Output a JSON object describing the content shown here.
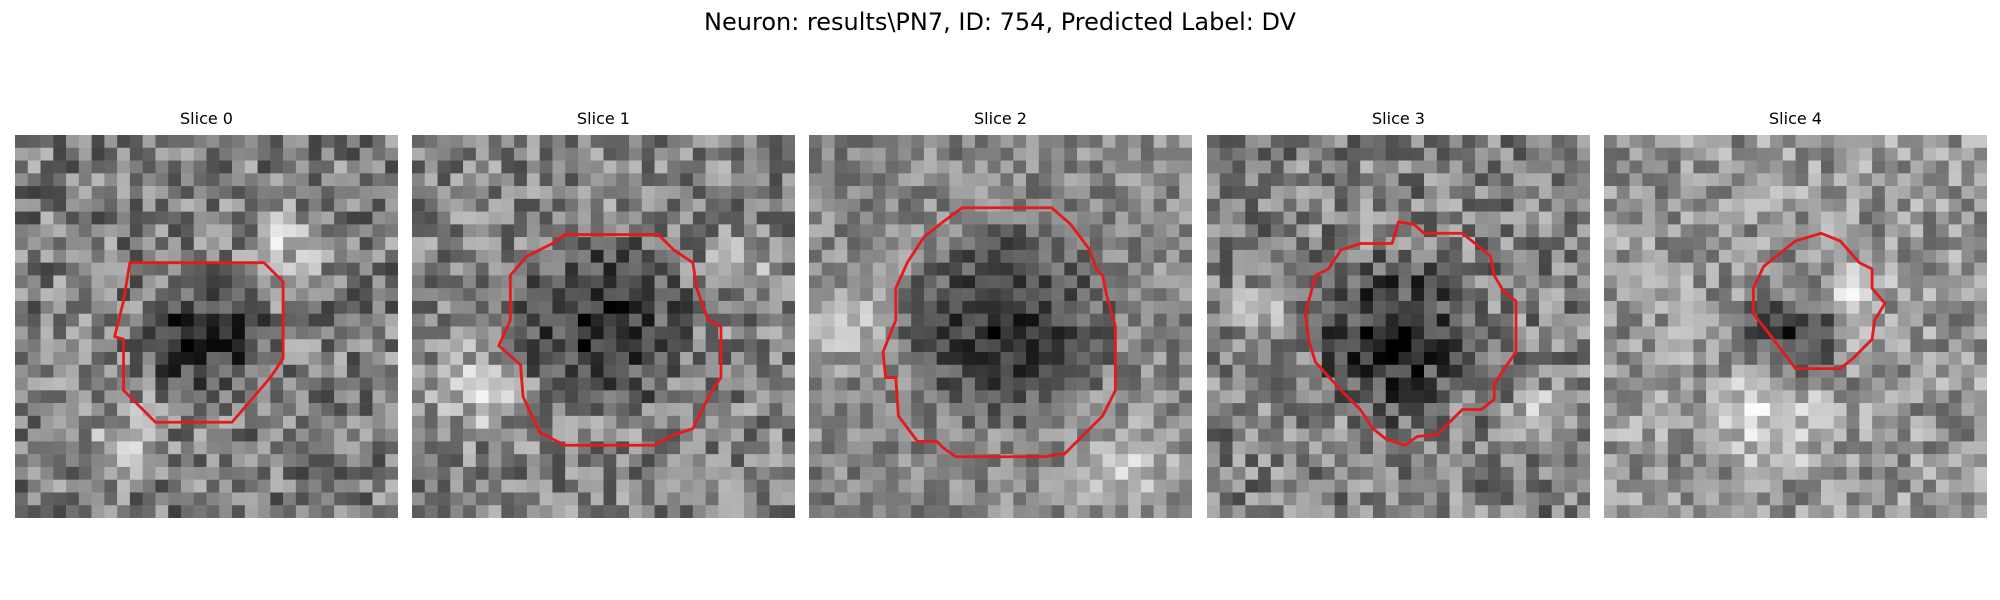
{
  "figure": {
    "title": "Neuron: results\\PN7, ID: 754, Predicted Label: DV"
  },
  "panels": [
    {
      "title": "Slice 0"
    },
    {
      "title": "Slice 1"
    },
    {
      "title": "Slice 2"
    },
    {
      "title": "Slice 3"
    },
    {
      "title": "Slice 4"
    }
  ],
  "colors": {
    "contour": "#e41a1c",
    "background": "#ffffff"
  }
}
